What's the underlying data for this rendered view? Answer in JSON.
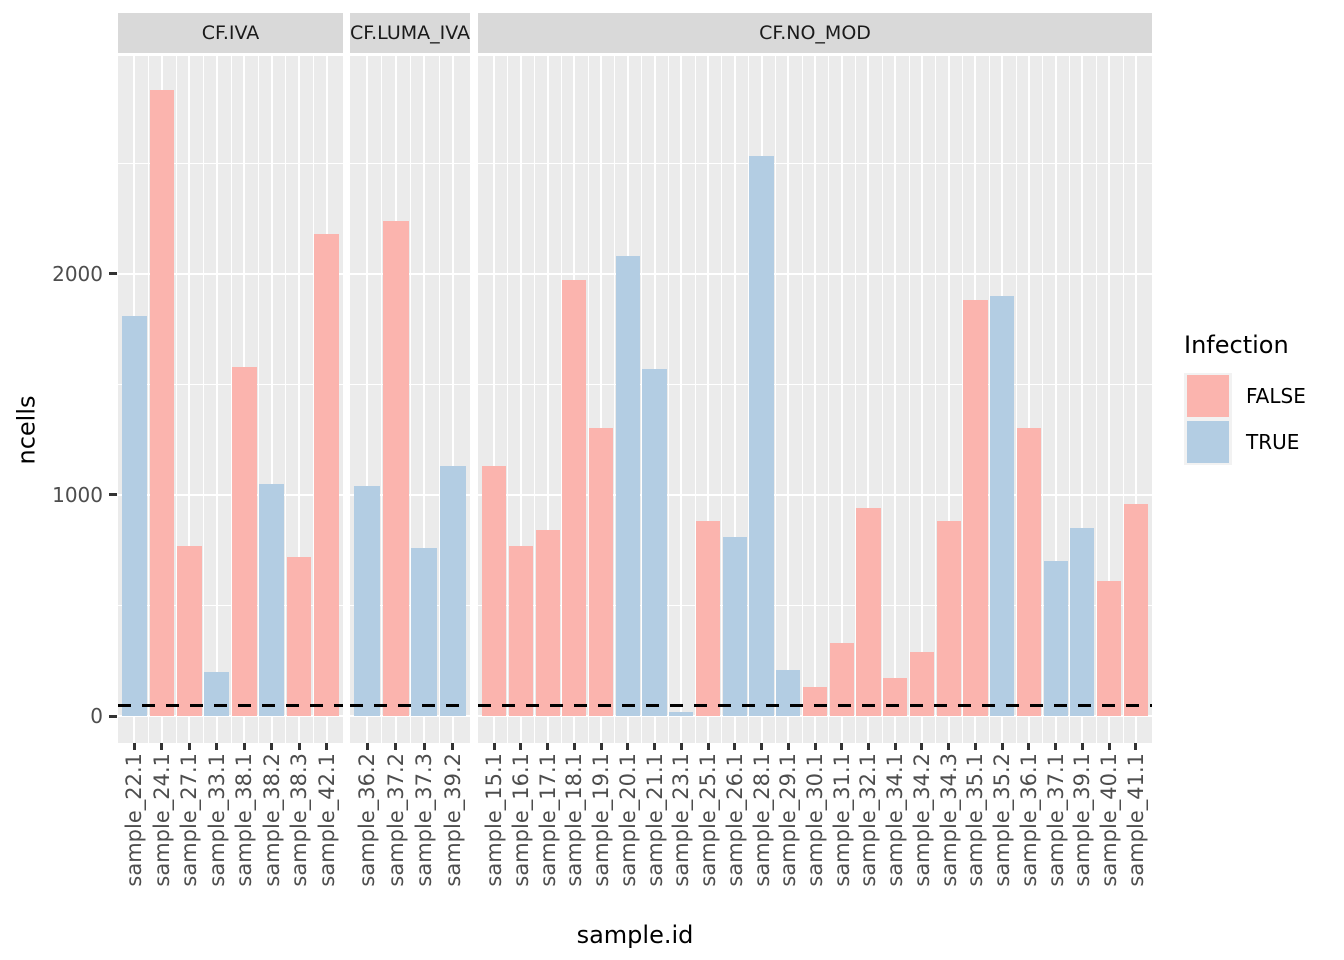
{
  "chart_data": {
    "type": "bar",
    "title": "",
    "xlabel": "sample.id",
    "ylabel": "ncells",
    "ylim": [
      0,
      2970
    ],
    "yticks": [
      0,
      1000,
      2000
    ],
    "minor_gridlines": [
      500,
      1500,
      2500
    ],
    "grid": "on",
    "legend_position": "right",
    "legend": {
      "title": "Infection",
      "entries": [
        {
          "label": "FALSE",
          "color": "#FBB4AE"
        },
        {
          "label": "TRUE",
          "color": "#B3CDE3"
        }
      ]
    },
    "hline": {
      "value": 50,
      "linetype": "dashed",
      "color": "#000000"
    },
    "facets": [
      {
        "label": "CF.IVA",
        "bars": [
          {
            "id": "sample_22.1",
            "infection": "TRUE",
            "ncells": 1810
          },
          {
            "id": "sample_24.1",
            "infection": "FALSE",
            "ncells": 2830
          },
          {
            "id": "sample_27.1",
            "infection": "FALSE",
            "ncells": 770
          },
          {
            "id": "sample_33.1",
            "infection": "TRUE",
            "ncells": 200
          },
          {
            "id": "sample_38.1",
            "infection": "FALSE",
            "ncells": 1580
          },
          {
            "id": "sample_38.2",
            "infection": "TRUE",
            "ncells": 1050
          },
          {
            "id": "sample_38.3",
            "infection": "FALSE",
            "ncells": 720
          },
          {
            "id": "sample_42.1",
            "infection": "FALSE",
            "ncells": 2180
          }
        ]
      },
      {
        "label": "CF.LUMA_IVA",
        "bars": [
          {
            "id": "sample_36.2",
            "infection": "TRUE",
            "ncells": 1040
          },
          {
            "id": "sample_37.2",
            "infection": "FALSE",
            "ncells": 2240
          },
          {
            "id": "sample_37.3",
            "infection": "TRUE",
            "ncells": 760
          },
          {
            "id": "sample_39.2",
            "infection": "TRUE",
            "ncells": 1130
          }
        ]
      },
      {
        "label": "CF.NO_MOD",
        "bars": [
          {
            "id": "sample_15.1",
            "infection": "FALSE",
            "ncells": 1130
          },
          {
            "id": "sample_16.1",
            "infection": "FALSE",
            "ncells": 770
          },
          {
            "id": "sample_17.1",
            "infection": "FALSE",
            "ncells": 840
          },
          {
            "id": "sample_18.1",
            "infection": "FALSE",
            "ncells": 1970
          },
          {
            "id": "sample_19.1",
            "infection": "FALSE",
            "ncells": 1300
          },
          {
            "id": "sample_20.1",
            "infection": "TRUE",
            "ncells": 2080
          },
          {
            "id": "sample_21.1",
            "infection": "TRUE",
            "ncells": 1570
          },
          {
            "id": "sample_23.1",
            "infection": "TRUE",
            "ncells": 20
          },
          {
            "id": "sample_25.1",
            "infection": "FALSE",
            "ncells": 880
          },
          {
            "id": "sample_26.1",
            "infection": "TRUE",
            "ncells": 810
          },
          {
            "id": "sample_28.1",
            "infection": "TRUE",
            "ncells": 2530
          },
          {
            "id": "sample_29.1",
            "infection": "TRUE",
            "ncells": 210
          },
          {
            "id": "sample_30.1",
            "infection": "FALSE",
            "ncells": 130
          },
          {
            "id": "sample_31.1",
            "infection": "FALSE",
            "ncells": 330
          },
          {
            "id": "sample_32.1",
            "infection": "FALSE",
            "ncells": 940
          },
          {
            "id": "sample_34.1",
            "infection": "FALSE",
            "ncells": 170
          },
          {
            "id": "sample_34.2",
            "infection": "FALSE",
            "ncells": 290
          },
          {
            "id": "sample_34.3",
            "infection": "FALSE",
            "ncells": 880
          },
          {
            "id": "sample_35.1",
            "infection": "FALSE",
            "ncells": 1880
          },
          {
            "id": "sample_35.2",
            "infection": "TRUE",
            "ncells": 1900
          },
          {
            "id": "sample_36.1",
            "infection": "FALSE",
            "ncells": 1300
          },
          {
            "id": "sample_37.1",
            "infection": "TRUE",
            "ncells": 700
          },
          {
            "id": "sample_39.1",
            "infection": "TRUE",
            "ncells": 850
          },
          {
            "id": "sample_40.1",
            "infection": "FALSE",
            "ncells": 610
          },
          {
            "id": "sample_41.1",
            "infection": "FALSE",
            "ncells": 960
          }
        ]
      }
    ],
    "colors": {
      "fill_false": "#FBB4AE",
      "fill_true": "#B3CDE3",
      "panel_bg": "#EBEBEB",
      "strip_bg": "#D9D9D9",
      "gridline": "#FFFFFF",
      "tick_text": "#4D4D4D",
      "hline": "#000000"
    }
  }
}
